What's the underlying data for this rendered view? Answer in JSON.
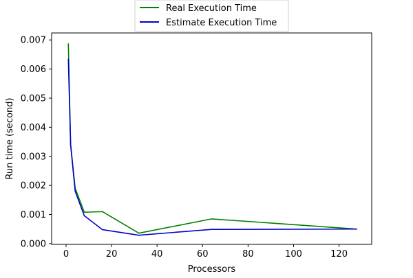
{
  "chart_data": {
    "type": "line",
    "xlabel": "Processors",
    "ylabel": "Run time (second)",
    "xlim": [
      -6.35,
      134.35
    ],
    "ylim": [
      -2.5e-05,
      0.00724
    ],
    "x_ticks": [
      0,
      20,
      40,
      60,
      80,
      100,
      120
    ],
    "y_ticks": [
      0.0,
      0.001,
      0.002,
      0.003,
      0.004,
      0.005,
      0.006,
      0.007
    ],
    "x_tick_labels": [
      "0",
      "20",
      "40",
      "60",
      "80",
      "100",
      "120"
    ],
    "y_tick_labels": [
      "0.000",
      "0.001",
      "0.002",
      "0.003",
      "0.004",
      "0.005",
      "0.006",
      "0.007"
    ],
    "x": [
      1,
      2,
      4,
      8,
      16,
      32,
      64,
      128
    ],
    "series": [
      {
        "name": "Real Execution Time",
        "color": "#008000",
        "values": [
          0.00688,
          0.0034,
          0.0019,
          0.00108,
          0.0011,
          0.00036,
          0.00085,
          0.0005
        ]
      },
      {
        "name": "Estimate Execution Time",
        "color": "#0000cd",
        "values": [
          0.00635,
          0.0034,
          0.0018,
          0.00096,
          0.00048,
          0.00029,
          0.00049,
          0.0005
        ]
      }
    ],
    "legend_position": "top-center",
    "grid": false
  }
}
